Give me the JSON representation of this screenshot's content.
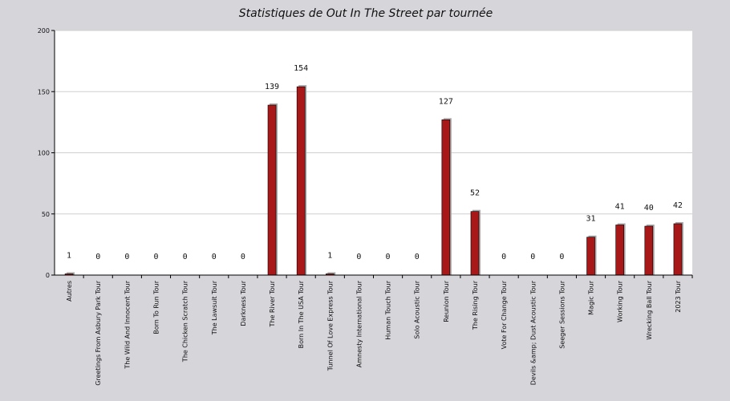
{
  "colors": {
    "background": "#d6d5da",
    "plot_background": "#ffffff",
    "bar": "#a81818",
    "bar_shadow": "#a8a8a8",
    "grid": "#cfcfcf"
  },
  "chart_data": {
    "type": "bar",
    "title": "Statistiques de Out In The Street par tournée",
    "xlabel": "",
    "ylabel": "",
    "ylim": [
      0,
      200
    ],
    "yticks": [
      0,
      50,
      100,
      150,
      200
    ],
    "grid": true,
    "legend": "none",
    "categories": [
      "Autres",
      "Greetings From Asbury Park Tour",
      "The Wild And Innocent Tour",
      "Born To Run Tour",
      "The Chicken Scratch Tour",
      "The Lawsuit Tour",
      "Darkness Tour",
      "The River Tour",
      "Born In The USA Tour",
      "Tunnel Of Love Express Tour",
      "Amnesty International Tour",
      "Human Touch Tour",
      "Solo Acoustic Tour",
      "Reunion Tour",
      "The Rising Tour",
      "Vote For Change Tour",
      "Devils &amp; Dust Acoustic Tour",
      "Seeger Sessions Tour",
      "Magic Tour",
      "Working Tour",
      "Wrecking Ball Tour",
      "2023 Tour"
    ],
    "values": [
      1,
      0,
      0,
      0,
      0,
      0,
      0,
      139,
      154,
      1,
      0,
      0,
      0,
      127,
      52,
      0,
      0,
      0,
      31,
      41,
      40,
      42
    ],
    "value_labels": [
      "1",
      "0",
      "0",
      "0",
      "0",
      "0",
      "0",
      "139",
      "154",
      "1",
      "0",
      "0",
      "0",
      "127",
      "52",
      "0",
      "0",
      "0",
      "31",
      "41",
      "40",
      "42"
    ]
  }
}
